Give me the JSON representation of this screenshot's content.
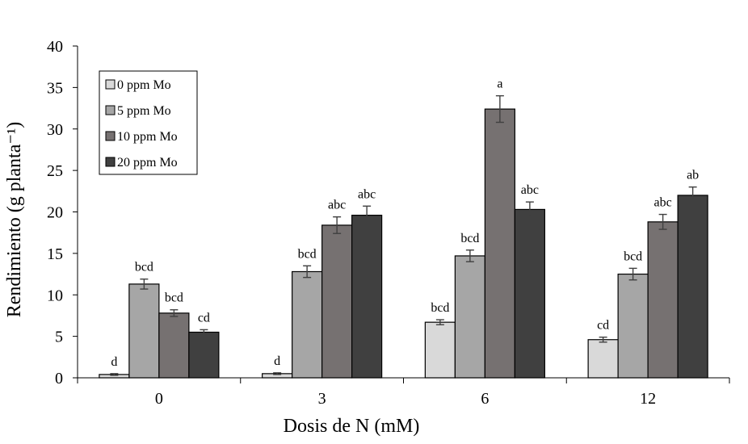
{
  "chart_data": {
    "type": "bar",
    "title": "",
    "xlabel": "Dosis de N (mM)",
    "ylabel": "Rendimiento (g planta⁻¹)",
    "categories": [
      "0",
      "3",
      "6",
      "12"
    ],
    "ylim": [
      0,
      40
    ],
    "yticks": [
      "0",
      "5",
      "10",
      "15",
      "20",
      "25",
      "30",
      "35",
      "40"
    ],
    "grid": false,
    "legend": "top-left",
    "series": [
      {
        "name": "0 ppm Mo",
        "color": "#d9d9d9",
        "values": [
          0.4,
          0.5,
          6.7,
          4.6
        ],
        "errors": [
          0.1,
          0.1,
          0.3,
          0.3
        ],
        "letters": [
          "d",
          "d",
          "bcd",
          "cd"
        ]
      },
      {
        "name": "5 ppm Mo",
        "color": "#a6a6a6",
        "values": [
          11.3,
          12.8,
          14.7,
          12.5
        ],
        "errors": [
          0.6,
          0.7,
          0.7,
          0.7
        ],
        "letters": [
          "bcd",
          "bcd",
          "bcd",
          "bcd"
        ]
      },
      {
        "name": "10 ppm Mo",
        "color": "#767171",
        "values": [
          7.8,
          18.4,
          32.4,
          18.8
        ],
        "errors": [
          0.4,
          1.0,
          1.6,
          0.9
        ],
        "letters": [
          "bcd",
          "abc",
          "a",
          "abc"
        ]
      },
      {
        "name": "20 ppm Mo",
        "color": "#404040",
        "values": [
          5.5,
          19.6,
          20.3,
          22.0
        ],
        "errors": [
          0.3,
          1.1,
          0.9,
          1.0
        ],
        "letters": [
          "cd",
          "abc",
          "abc",
          "ab"
        ]
      }
    ]
  }
}
